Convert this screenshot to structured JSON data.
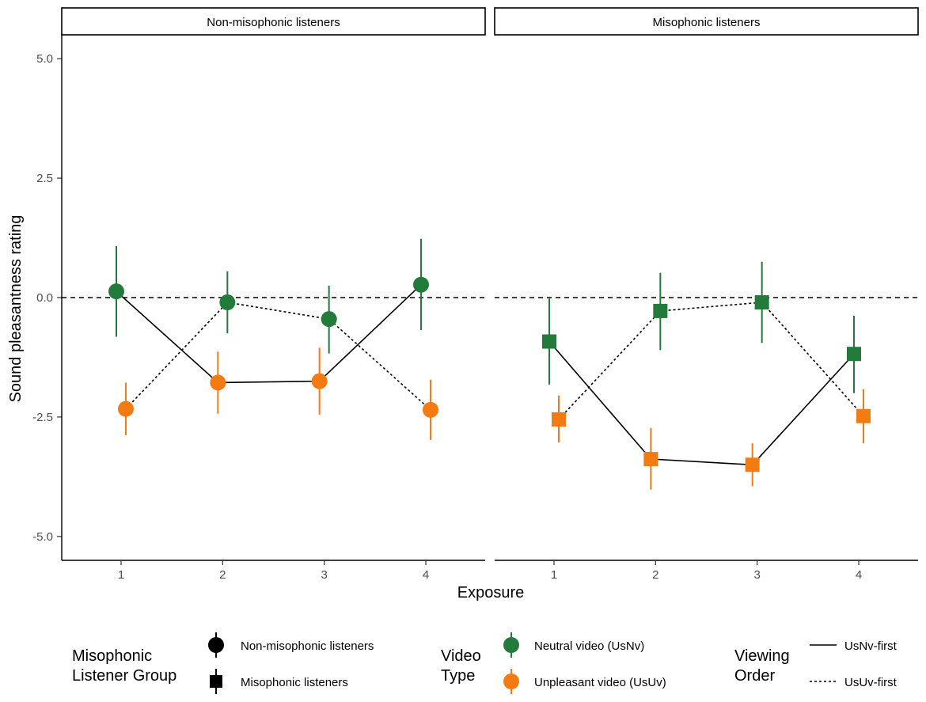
{
  "chart_data": {
    "type": "scatter",
    "xlabel": "Exposure",
    "ylabel": "Sound pleasantness rating",
    "ylim": [
      -5.5,
      5.5
    ],
    "yticks": [
      "5.0",
      "2.5",
      "0.0",
      "-2.5",
      "-5.0"
    ],
    "ytick_values": [
      5.0,
      2.5,
      0.0,
      -2.5,
      -5.0
    ],
    "xticks": [
      "1",
      "2",
      "3",
      "4"
    ],
    "reference_line": 0.0,
    "panels": [
      {
        "title": "Non-misophonic listeners",
        "marker": "circle",
        "series": [
          {
            "name": "UsNv-first",
            "linestyle": "solid",
            "points": [
              {
                "exposure": 1,
                "video": "Neutral video (UsNv)",
                "y": 0.13,
                "lo": -0.82,
                "hi": 1.08
              },
              {
                "exposure": 2,
                "video": "Unpleasant video (UsUv)",
                "y": -1.78,
                "lo": -2.43,
                "hi": -1.13
              },
              {
                "exposure": 3,
                "video": "Unpleasant video (UsUv)",
                "y": -1.75,
                "lo": -2.45,
                "hi": -1.05
              },
              {
                "exposure": 4,
                "video": "Neutral video (UsNv)",
                "y": 0.27,
                "lo": -0.68,
                "hi": 1.23
              }
            ]
          },
          {
            "name": "UsUv-first",
            "linestyle": "dashed",
            "points": [
              {
                "exposure": 1,
                "video": "Unpleasant video (UsUv)",
                "y": -2.33,
                "lo": -2.88,
                "hi": -1.78
              },
              {
                "exposure": 2,
                "video": "Neutral video (UsNv)",
                "y": -0.1,
                "lo": -0.75,
                "hi": 0.55
              },
              {
                "exposure": 3,
                "video": "Neutral video (UsNv)",
                "y": -0.45,
                "lo": -1.17,
                "hi": 0.25
              },
              {
                "exposure": 4,
                "video": "Unpleasant video (UsUv)",
                "y": -2.35,
                "lo": -2.98,
                "hi": -1.72
              }
            ]
          }
        ]
      },
      {
        "title": "Misophonic listeners",
        "marker": "square",
        "series": [
          {
            "name": "UsNv-first",
            "linestyle": "solid",
            "points": [
              {
                "exposure": 1,
                "video": "Neutral video (UsNv)",
                "y": -0.92,
                "lo": -1.82,
                "hi": -0.02
              },
              {
                "exposure": 2,
                "video": "Unpleasant video (UsUv)",
                "y": -3.38,
                "lo": -4.02,
                "hi": -2.73
              },
              {
                "exposure": 3,
                "video": "Unpleasant video (UsUv)",
                "y": -3.5,
                "lo": -3.95,
                "hi": -3.05
              },
              {
                "exposure": 4,
                "video": "Neutral video (UsNv)",
                "y": -1.18,
                "lo": -2.0,
                "hi": -0.38
              }
            ]
          },
          {
            "name": "UsUv-first",
            "linestyle": "dashed",
            "points": [
              {
                "exposure": 1,
                "video": "Unpleasant video (UsUv)",
                "y": -2.55,
                "lo": -3.03,
                "hi": -2.05
              },
              {
                "exposure": 2,
                "video": "Neutral video (UsNv)",
                "y": -0.28,
                "lo": -1.1,
                "hi": 0.52
              },
              {
                "exposure": 3,
                "video": "Neutral video (UsNv)",
                "y": -0.1,
                "lo": -0.95,
                "hi": 0.75
              },
              {
                "exposure": 4,
                "video": "Unpleasant video (UsUv)",
                "y": -2.48,
                "lo": -3.05,
                "hi": -1.92
              }
            ]
          }
        ]
      }
    ],
    "colors": {
      "Neutral video (UsNv)": "#237b3b",
      "Unpleasant video (UsUv)": "#f47b12",
      "line": "#000000",
      "axis_text": "#4d4d4d"
    },
    "legend": {
      "placement": "bottom",
      "groups": [
        {
          "title_lines": [
            "Misophonic",
            "Listener Group"
          ],
          "type": "shape",
          "entries": [
            {
              "label": "Non-misophonic listeners",
              "shape": "circle"
            },
            {
              "label": "Misophonic listeners",
              "shape": "square"
            }
          ]
        },
        {
          "title_lines": [
            "Video",
            "Type"
          ],
          "type": "color",
          "entries": [
            {
              "label": "Neutral video (UsNv)",
              "color": "#237b3b"
            },
            {
              "label": "Unpleasant video (UsUv)",
              "color": "#f47b12"
            }
          ]
        },
        {
          "title_lines": [
            "Viewing",
            "Order"
          ],
          "type": "linetype",
          "entries": [
            {
              "label": "UsNv-first",
              "linestyle": "solid"
            },
            {
              "label": "UsUv-first",
              "linestyle": "dashed"
            }
          ]
        }
      ]
    }
  }
}
